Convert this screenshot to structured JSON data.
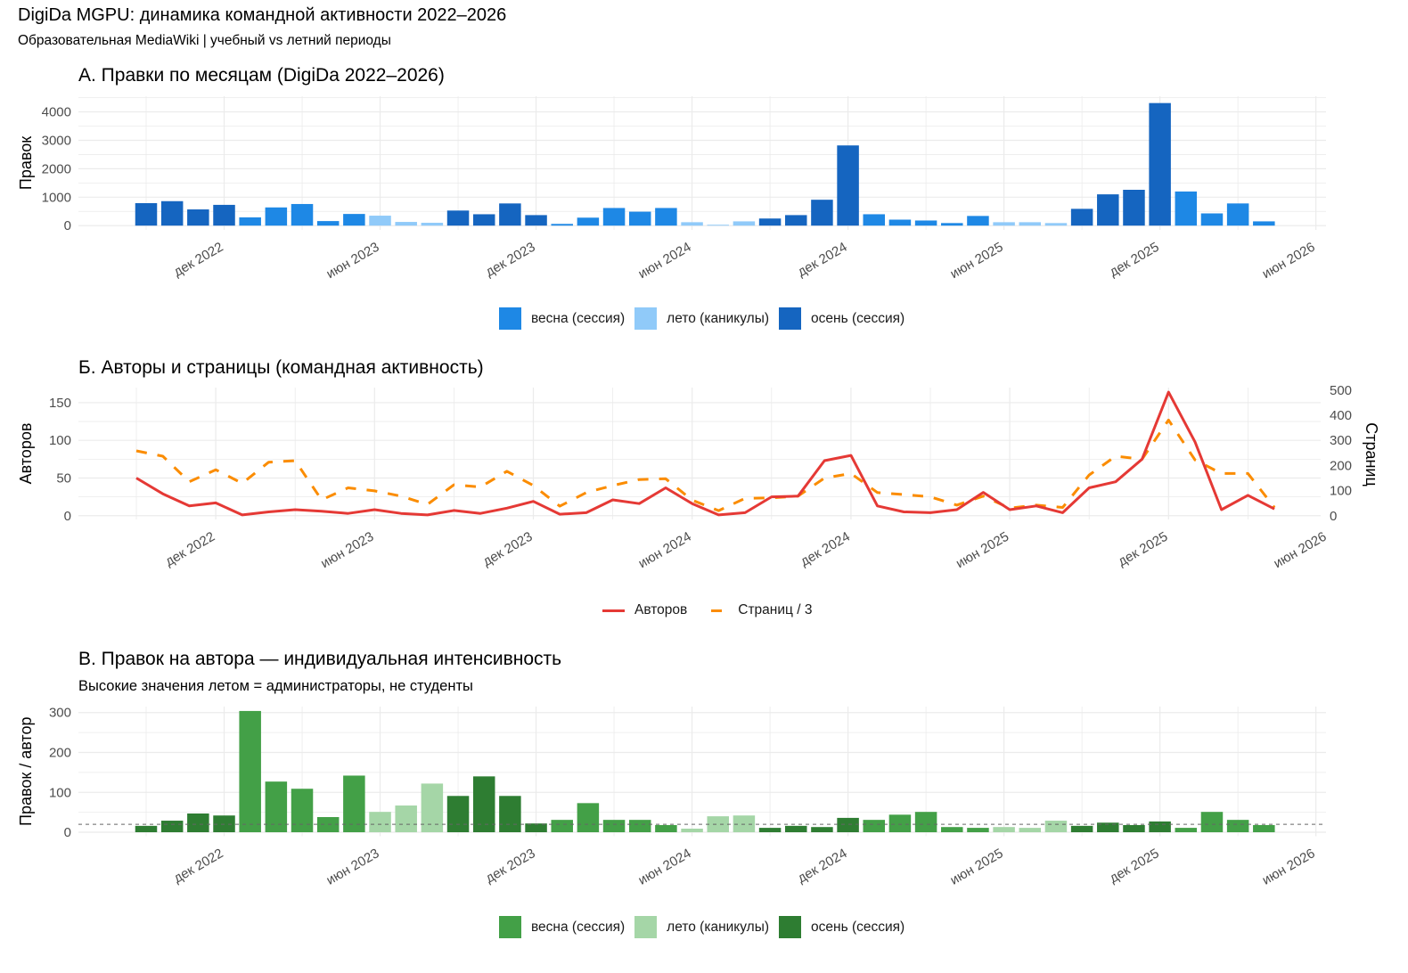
{
  "header": {
    "title": "DigiDa MGPU: динамика командной активности 2022–2026",
    "subtitle": "Образовательная MediaWiki | учебный vs летний периоды"
  },
  "colors": {
    "spring_blue": "#1E88E5",
    "summer_blue": "#90CAF9",
    "autumn_blue": "#1565C0",
    "spring_green": "#43A047",
    "summer_green": "#A5D6A7",
    "autumn_green": "#2E7D32",
    "authors_line": "#E53935",
    "pages_line": "#FB8C00",
    "reference_line": "#666666"
  },
  "chart_data": [
    {
      "id": "A",
      "type": "bar",
      "title": "А. Правки по месяцам (DigiDa 2022–2026)",
      "xlabel": "",
      "ylabel": "Правок",
      "ylim": [
        -150,
        4550
      ],
      "yticks": [
        0,
        1000,
        2000,
        3000,
        4000
      ],
      "grid": true,
      "legend_position": "bottom",
      "legend": [
        {
          "key": "spring",
          "label": "весна (сессия)",
          "color": "#1E88E5"
        },
        {
          "key": "summer",
          "label": "лето (каникулы)",
          "color": "#90CAF9"
        },
        {
          "key": "autumn",
          "label": "осень (сессия)",
          "color": "#1565C0"
        }
      ],
      "x_start": "2022-09",
      "xticks": [
        {
          "month_index": 3,
          "label": "дек 2022"
        },
        {
          "month_index": 9,
          "label": "июн 2023"
        },
        {
          "month_index": 15,
          "label": "дек 2023"
        },
        {
          "month_index": 21,
          "label": "июн 2024"
        },
        {
          "month_index": 27,
          "label": "дек 2024"
        },
        {
          "month_index": 33,
          "label": "июн 2025"
        },
        {
          "month_index": 39,
          "label": "дек 2025"
        },
        {
          "month_index": 45,
          "label": "июн 2026"
        }
      ],
      "categories": [
        "2022-09",
        "2022-10",
        "2022-11",
        "2022-12",
        "2023-01",
        "2023-02",
        "2023-03",
        "2023-04",
        "2023-05",
        "2023-06",
        "2023-07",
        "2023-08",
        "2023-09",
        "2023-10",
        "2023-11",
        "2023-12",
        "2024-01",
        "2024-02",
        "2024-03",
        "2024-04",
        "2024-05",
        "2024-06",
        "2024-07",
        "2024-08",
        "2024-09",
        "2024-10",
        "2024-11",
        "2024-12",
        "2025-01",
        "2025-02",
        "2025-03",
        "2025-04",
        "2025-05",
        "2025-06",
        "2025-07",
        "2025-08",
        "2025-09",
        "2025-10",
        "2025-11",
        "2025-12",
        "2026-01",
        "2026-02",
        "2026-03",
        "2026-04"
      ],
      "season": [
        "autumn",
        "autumn",
        "autumn",
        "autumn",
        "spring",
        "spring",
        "spring",
        "spring",
        "spring",
        "summer",
        "summer",
        "summer",
        "autumn",
        "autumn",
        "autumn",
        "autumn",
        "spring",
        "spring",
        "spring",
        "spring",
        "spring",
        "summer",
        "summer",
        "summer",
        "autumn",
        "autumn",
        "autumn",
        "autumn",
        "spring",
        "spring",
        "spring",
        "spring",
        "spring",
        "summer",
        "summer",
        "summer",
        "autumn",
        "autumn",
        "autumn",
        "autumn",
        "spring",
        "spring",
        "spring",
        "spring"
      ],
      "values": [
        790,
        860,
        570,
        730,
        290,
        640,
        760,
        160,
        410,
        350,
        130,
        100,
        530,
        400,
        780,
        370,
        60,
        280,
        620,
        490,
        620,
        120,
        30,
        150,
        250,
        370,
        910,
        2820,
        400,
        210,
        180,
        90,
        340,
        120,
        120,
        90,
        590,
        1100,
        1260,
        4310,
        1200,
        430,
        780,
        150
      ]
    },
    {
      "id": "B",
      "type": "line",
      "title": "Б. Авторы и страницы (командная активность)",
      "xlabel": "",
      "ylabel": "Авторов",
      "ylabel_right": "Страниц",
      "ylim": [
        -5,
        170
      ],
      "yticks": [
        0,
        50,
        100,
        150
      ],
      "y2ticks": [
        0,
        100,
        200,
        300,
        400,
        500
      ],
      "y2_scale_note": "Страниц / 3 plotted on left axis",
      "grid": true,
      "legend_position": "bottom",
      "legend": [
        {
          "key": "authors",
          "label": "Авторов",
          "color": "#E53935",
          "style": "solid"
        },
        {
          "key": "pages",
          "label": "Страниц / 3",
          "color": "#FB8C00",
          "style": "dashed"
        }
      ],
      "x_start": "2022-09",
      "xticks": [
        {
          "month_index": 3,
          "label": "дек 2022"
        },
        {
          "month_index": 9,
          "label": "июн 2023"
        },
        {
          "month_index": 15,
          "label": "дек 2023"
        },
        {
          "month_index": 21,
          "label": "июн 2024"
        },
        {
          "month_index": 27,
          "label": "дек 2024"
        },
        {
          "month_index": 33,
          "label": "июн 2025"
        },
        {
          "month_index": 39,
          "label": "дек 2025"
        },
        {
          "month_index": 45,
          "label": "июн 2026"
        }
      ],
      "series": [
        {
          "name": "Авторов",
          "values": [
            50,
            29,
            13,
            17,
            1,
            5,
            8,
            6,
            3,
            8,
            3,
            1,
            7,
            3,
            10,
            19,
            2,
            4,
            21,
            16,
            37,
            16,
            1,
            4,
            25,
            26,
            73,
            80,
            13,
            5,
            4,
            8,
            31,
            8,
            13,
            4,
            37,
            45,
            75,
            164,
            98,
            8,
            27,
            9
          ]
        },
        {
          "name": "Страниц",
          "values": [
            258,
            237,
            135,
            183,
            129,
            213,
            219,
            63,
            111,
            99,
            78,
            45,
            123,
            114,
            177,
            120,
            38,
            92,
            120,
            144,
            147,
            62,
            20,
            69,
            71,
            78,
            150,
            168,
            92,
            84,
            75,
            42,
            78,
            30,
            42,
            33,
            162,
            237,
            225,
            381,
            222,
            168,
            168,
            33
          ]
        }
      ]
    },
    {
      "id": "C",
      "type": "bar",
      "title": "В. Правок на автора — индивидуальная интенсивность",
      "subtitle": "Высокие значения летом = администраторы, не студенты",
      "xlabel": "",
      "ylabel": "Правок / автор",
      "ylim": [
        -10,
        315
      ],
      "yticks": [
        0,
        100,
        200,
        300
      ],
      "reference_line": 20,
      "grid": true,
      "legend_position": "bottom",
      "legend": [
        {
          "key": "spring",
          "label": "весна (сессия)",
          "color": "#43A047"
        },
        {
          "key": "summer",
          "label": "лето (каникулы)",
          "color": "#A5D6A7"
        },
        {
          "key": "autumn",
          "label": "осень (сессия)",
          "color": "#2E7D32"
        }
      ],
      "x_start": "2022-09",
      "xticks": [
        {
          "month_index": 3,
          "label": "дек 2022"
        },
        {
          "month_index": 9,
          "label": "июн 2023"
        },
        {
          "month_index": 15,
          "label": "дек 2023"
        },
        {
          "month_index": 21,
          "label": "июн 2024"
        },
        {
          "month_index": 27,
          "label": "дек 2024"
        },
        {
          "month_index": 33,
          "label": "июн 2025"
        },
        {
          "month_index": 39,
          "label": "дек 2025"
        },
        {
          "month_index": 45,
          "label": "июн 2026"
        }
      ],
      "season": [
        "autumn",
        "autumn",
        "autumn",
        "autumn",
        "spring",
        "spring",
        "spring",
        "spring",
        "spring",
        "summer",
        "summer",
        "summer",
        "autumn",
        "autumn",
        "autumn",
        "autumn",
        "spring",
        "spring",
        "spring",
        "spring",
        "spring",
        "summer",
        "summer",
        "summer",
        "autumn",
        "autumn",
        "autumn",
        "autumn",
        "spring",
        "spring",
        "spring",
        "spring",
        "spring",
        "summer",
        "summer",
        "summer",
        "autumn",
        "autumn",
        "autumn",
        "autumn",
        "spring",
        "spring",
        "spring",
        "spring"
      ],
      "values": [
        16,
        29,
        47,
        42,
        304,
        127,
        109,
        38,
        142,
        51,
        67,
        122,
        91,
        140,
        91,
        22,
        31,
        73,
        31,
        31,
        18,
        9,
        40,
        42,
        11,
        16,
        13,
        36,
        31,
        44,
        51,
        13,
        11,
        13,
        11,
        29,
        16,
        24,
        18,
        27,
        11,
        51,
        31,
        18
      ]
    }
  ]
}
